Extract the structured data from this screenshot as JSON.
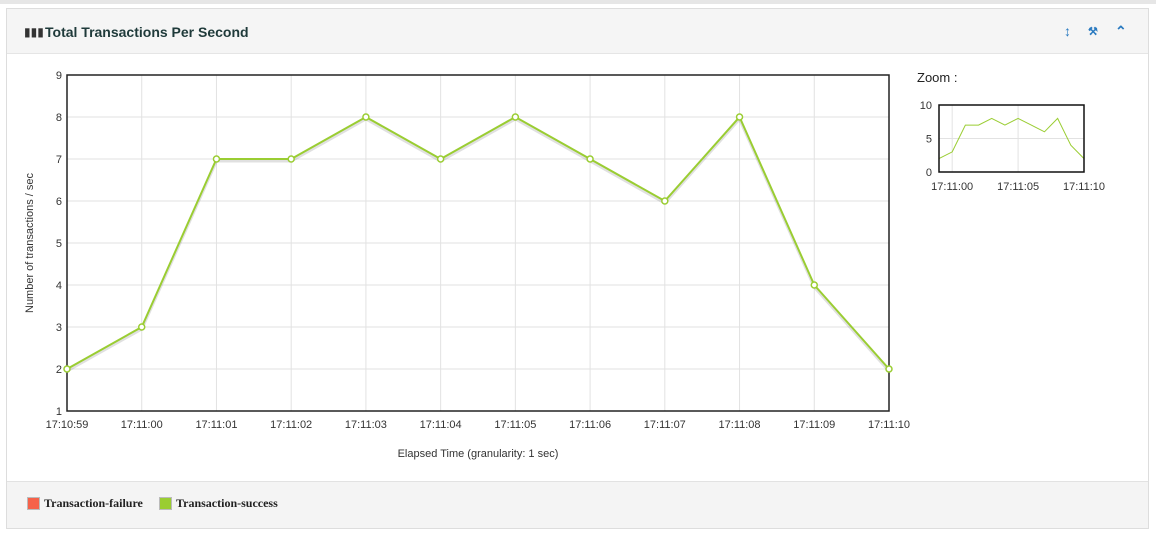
{
  "panel": {
    "title": "Total Transactions Per Second",
    "icon": "bar-chart-icon",
    "buttons": [
      {
        "name": "resize",
        "icon": "arrows-vertical-icon",
        "glyph": "↕"
      },
      {
        "name": "settings",
        "icon": "wrench-icon",
        "glyph": "🔧"
      },
      {
        "name": "collapse",
        "icon": "chevron-up-icon",
        "glyph": "^"
      }
    ]
  },
  "zoom_label": "Zoom :",
  "legend": [
    {
      "label": "Transaction-failure",
      "color": "#f5624a"
    },
    {
      "label": "Transaction-success",
      "color": "#9acd32"
    }
  ],
  "chart_data": {
    "type": "line",
    "xlabel": "Elapsed Time (granularity: 1 sec)",
    "ylabel": "Number of transactions / sec",
    "categories": [
      "17:10:59",
      "17:11:00",
      "17:11:01",
      "17:11:02",
      "17:11:03",
      "17:11:04",
      "17:11:05",
      "17:11:06",
      "17:11:07",
      "17:11:08",
      "17:11:09",
      "17:11:10"
    ],
    "ylim": [
      1,
      9
    ],
    "yticks": [
      1,
      2,
      3,
      4,
      5,
      6,
      7,
      8,
      9
    ],
    "grid": true,
    "series": [
      {
        "name": "Transaction-success",
        "color": "#9acd32",
        "values": [
          2,
          3,
          7,
          7,
          8,
          7,
          8,
          7,
          6,
          8,
          4,
          2
        ]
      }
    ],
    "overview": {
      "ylim": [
        0,
        10
      ],
      "yticks": [
        0,
        5,
        10
      ],
      "xticks": [
        "17:11:00",
        "17:11:05",
        "17:11:10"
      ]
    }
  }
}
